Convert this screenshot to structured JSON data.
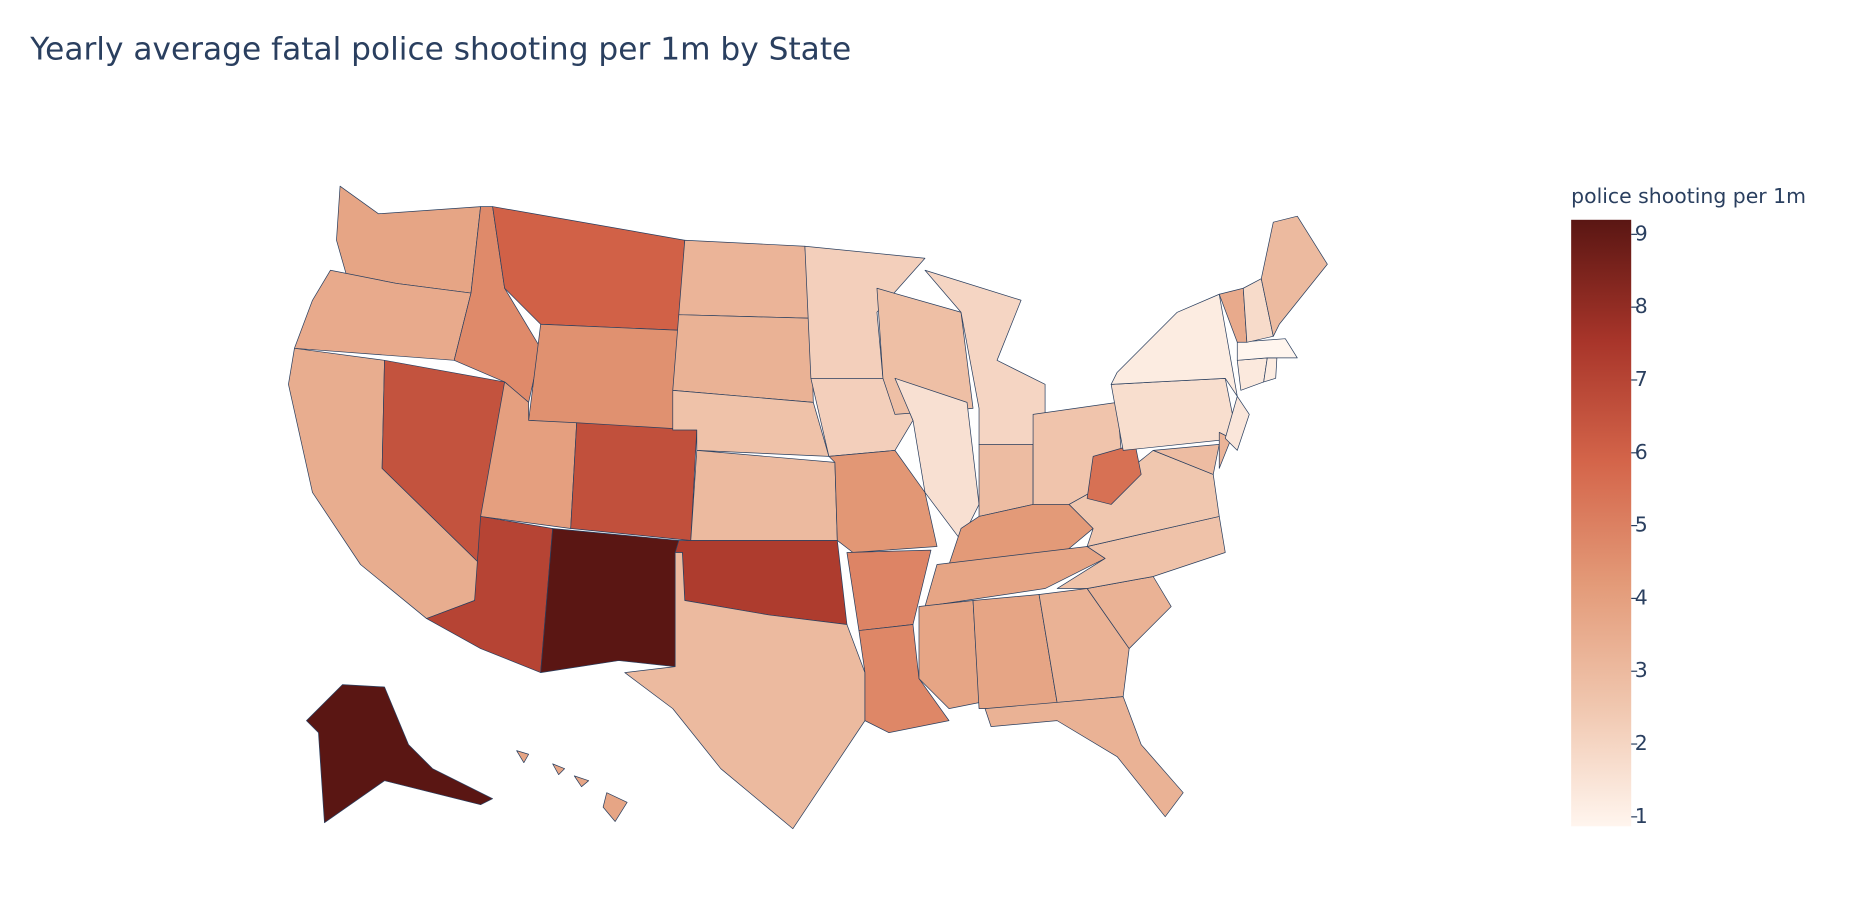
{
  "chart_data": {
    "type": "choropleth",
    "title": "Yearly average fatal police shooting per 1m by State",
    "colorbar_title": "police shooting per 1m",
    "values": [
      3.8,
      3.6,
      3.5,
      6.5,
      4.7,
      6.0,
      4.5,
      4.0,
      6.6,
      7.0,
      9.2,
      3.2,
      3.3,
      2.7,
      3.0,
      7.3,
      3.0,
      2.2,
      2.2,
      4.3,
      4.9,
      4.8,
      2.8,
      1.6,
      2.0,
      2.9,
      2.6,
      4.2,
      3.8,
      3.8,
      3.8,
      3.3,
      3.3,
      3.3,
      2.7,
      2.5,
      5.5,
      1.7,
      1.2,
      2.9,
      3.2,
      1.4,
      1.3,
      1.2,
      0.87,
      3.6,
      1.8,
      3.0,
      9.2,
      3.8
    ],
    "zlim": [
      0.87,
      9.2
    ],
    "colorscale": [
      [
        0,
        "#fff5ee"
      ],
      [
        0.2,
        "#f0c6ae"
      ],
      [
        0.4,
        "#e39a78"
      ],
      [
        0.6,
        "#d4654a"
      ],
      [
        0.8,
        "#a8352a"
      ],
      [
        1,
        "#5a1613"
      ]
    ],
    "colorbar_ticks": [
      1,
      2,
      3,
      4,
      5,
      6,
      7,
      8,
      9
    ]
  }
}
